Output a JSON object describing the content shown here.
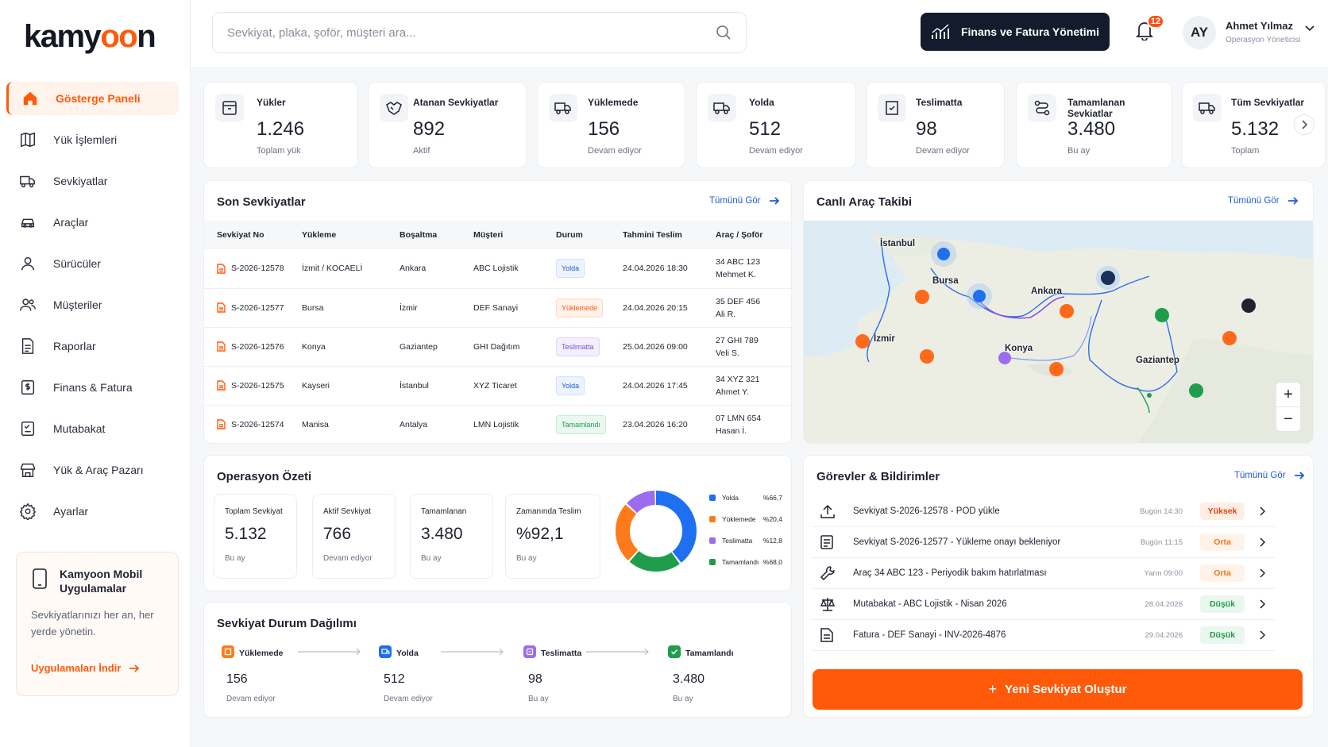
{
  "brand": {
    "pre": "kamy",
    "o1": "o",
    "o2": "o",
    "post": "n"
  },
  "sidebar": {
    "items": [
      {
        "label": "Gösterge Paneli",
        "icon": "home-icon"
      },
      {
        "label": "Yük İşlemleri",
        "icon": "map-icon"
      },
      {
        "label": "Sevkiyatlar",
        "icon": "truck-icon"
      },
      {
        "label": "Araçlar",
        "icon": "car-icon"
      },
      {
        "label": "Sürücüler",
        "icon": "user-icon"
      },
      {
        "label": "Müşteriler",
        "icon": "users-icon"
      },
      {
        "label": "Raporlar",
        "icon": "report-icon"
      },
      {
        "label": "Finans & Fatura",
        "icon": "dollar-doc-icon"
      },
      {
        "label": "Mutabakat",
        "icon": "reconcile-icon"
      },
      {
        "label": "Yük & Araç Pazarı",
        "icon": "market-icon"
      },
      {
        "label": "Ayarlar",
        "icon": "gear-icon"
      }
    ],
    "promo": {
      "title": "Kamyoon Mobil Uygulamalar",
      "text": "Sevkiyatlarınızı her an, her yerde yönetin.",
      "link": "Uygulamaları İndir"
    }
  },
  "header": {
    "search_placeholder": "Sevkiyat, plaka, şoför, müşteri ara...",
    "finance_button": "Finans ve Fatura Yönetimi",
    "notifications": "12",
    "user": {
      "initials": "AY",
      "name": "Ahmet Yılmaz",
      "role": "Operasyon Yöneticisi"
    }
  },
  "stats": [
    {
      "label": "Yükler",
      "value": "1.246",
      "sub": "Toplam yük"
    },
    {
      "label": "Atanan Sevkiyatlar",
      "value": "892",
      "sub": "Aktif"
    },
    {
      "label": "Yüklemede",
      "value": "156",
      "sub": "Devam ediyor"
    },
    {
      "label": "Yolda",
      "value": "512",
      "sub": "Devam ediyor"
    },
    {
      "label": "Teslimatta",
      "value": "98",
      "sub": "Devam ediyor"
    },
    {
      "label": "Tamamlanan Sevkiatlar",
      "value": "3.480",
      "sub": "Bu ay"
    },
    {
      "label": "Tüm Sevkiyatlar",
      "value": "5.132",
      "sub": "Toplam"
    }
  ],
  "recent": {
    "title": "Son Sevkiyatlar",
    "link": "Tümünü Gör",
    "columns": [
      "Sevkiyat No",
      "Yükleme",
      "Boşaltma",
      "Müşteri",
      "Durum",
      "Tahmini Teslim",
      "Araç / Şoför"
    ],
    "rows": [
      {
        "no": "S-2026-12578",
        "from": "İzmit / KOCAELİ",
        "to": "Ankara",
        "customer": "ABC Lojistik",
        "status": "Yolda",
        "eta": "24.04.2026 18:30",
        "plate": "34 ABC 123",
        "driver": "Mehmet K."
      },
      {
        "no": "S-2026-12577",
        "from": "Bursa",
        "to": "İzmir",
        "customer": "DEF Sanayi",
        "status": "Yüklemede",
        "eta": "24.04.2026 20:15",
        "plate": "35 DEF 456",
        "driver": "Ali R."
      },
      {
        "no": "S-2026-12576",
        "from": "Konya",
        "to": "Gaziantep",
        "customer": "GHI Dağıtım",
        "status": "Teslimatta",
        "eta": "25.04.2026 09:00",
        "plate": "27 GHI 789",
        "driver": "Veli S."
      },
      {
        "no": "S-2026-12575",
        "from": "Kayseri",
        "to": "İstanbul",
        "customer": "XYZ Ticaret",
        "status": "Yolda",
        "eta": "24.04.2026 17:45",
        "plate": "34 XYZ 321",
        "driver": "Ahmet Y."
      },
      {
        "no": "S-2026-12574",
        "from": "Manisa",
        "to": "Antalya",
        "customer": "LMN Lojistik",
        "status": "Tamamlandı",
        "eta": "23.04.2026 16:20",
        "plate": "07 LMN 654",
        "driver": "Hasan İ."
      }
    ]
  },
  "map": {
    "title": "Canlı Araç Takibi",
    "link": "Tümünü Gör",
    "cities": [
      "İstanbul",
      "Bursa",
      "Ankara",
      "İzmir",
      "Konya",
      "Gaziantep"
    ],
    "zoom_in": "+",
    "zoom_out": "−"
  },
  "ops": {
    "title": "Operasyon Özeti",
    "cards": [
      {
        "label": "Toplam Sevkiyat",
        "value": "5.132",
        "sub": "Bu ay"
      },
      {
        "label": "Aktif Sevkiyat",
        "value": "766",
        "sub": "Devam ediyor"
      },
      {
        "label": "Tamamlanan",
        "value": "3.480",
        "sub": "Bu ay"
      },
      {
        "label": "Zamanında Teslim",
        "value": "%92,1",
        "sub": "Bu ay"
      }
    ],
    "chart_data": {
      "type": "pie",
      "categories": [
        "Yolda",
        "Yüklemede",
        "Teslimatta",
        "Tamamlandı"
      ],
      "percent_labels": [
        "%66,7",
        "%20,4",
        "%12,8",
        "%68,0"
      ],
      "segments": [
        0.4,
        0.22,
        0.25,
        0.13
      ],
      "colors": [
        "#1e6ff2",
        "#1f9d4c",
        "#ff7a1a",
        "#9b6cf0"
      ]
    }
  },
  "distribution": {
    "title": "Sevkiyat Durum Dağılımı",
    "items": [
      {
        "label": "Yüklemede",
        "value": "156",
        "sub": "Devam ediyor",
        "color": "#ff7a1a"
      },
      {
        "label": "Yolda",
        "value": "512",
        "sub": "Devam ediyor",
        "color": "#1e6ff2"
      },
      {
        "label": "Teslimatta",
        "value": "98",
        "sub": "Bu ay",
        "color": "#9b6cf0"
      },
      {
        "label": "Tamamlandı",
        "value": "3.480",
        "sub": "Bu ay",
        "color": "#1f9d4c"
      }
    ]
  },
  "tasks": {
    "title": "Görevler & Bildirimler",
    "link": "Tümünü Gör",
    "items": [
      {
        "text": "Sevkiyat S-2026-12578 - POD yükle",
        "time": "Bugün 14:30",
        "priority": "Yüksek",
        "level": "high",
        "icon": "upload-icon"
      },
      {
        "text": "Sevkiyat S-2026-12577 - Yükleme onayı bekleniyor",
        "time": "Bugün 11:15",
        "priority": "Orta",
        "level": "mid",
        "icon": "checklist-icon"
      },
      {
        "text": "Araç 34 ABC 123 - Periyodik bakım hatırlatması",
        "time": "Yarın 09:00",
        "priority": "Orta",
        "level": "mid",
        "icon": "wrench-icon"
      },
      {
        "text": "Mutabakat - ABC Lojistik - Nisan 2026",
        "time": "28.04.2026",
        "priority": "Düşük",
        "level": "low",
        "icon": "scale-icon"
      },
      {
        "text": "Fatura - DEF Sanayi - INV-2026-4876",
        "time": "29.04.2026",
        "priority": "Düşük",
        "level": "low",
        "icon": "invoice-icon"
      }
    ],
    "new_button": "Yeni Sevkiyat Oluştur",
    "new_button_icon": "+"
  }
}
